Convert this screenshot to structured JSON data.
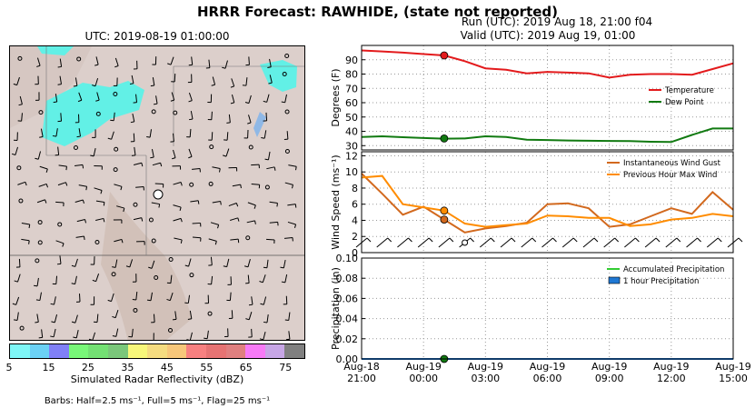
{
  "header": {
    "title": "HRRR Forecast: RAWHIDE, (state not reported)",
    "run": "Run (UTC): 2019 Aug 18, 21:00 f04",
    "valid": "Valid (UTC): 2019 Aug 19, 01:00"
  },
  "map": {
    "title": "UTC: 2019-08-19 01:00:00",
    "colorbar_label": "Simulated Radar Reflectivity (dBZ)",
    "colorbar_ticks": [
      "5",
      "15",
      "25",
      "35",
      "45",
      "55",
      "65",
      "75"
    ],
    "colorbar_colors": [
      "#7ef7f7",
      "#6bd1f5",
      "#8080f7",
      "#78f778",
      "#73e073",
      "#7ac77a",
      "#f7f77a",
      "#f5dc80",
      "#f7c77a",
      "#f78080",
      "#e67373",
      "#e08080",
      "#f77af7",
      "#c7a6e6",
      "#808080"
    ],
    "barbs_note": "Barbs: Half=2.5 ms⁻¹, Full=5 ms⁻¹, Flag=25 ms⁻¹",
    "colors": {
      "terrain": "#dcd0cc",
      "echo": "#62f0e6",
      "water": "#8fb8e6"
    }
  },
  "chart_data": [
    {
      "type": "line",
      "ylabel": "Degrees (F)",
      "ylim": [
        27,
        100
      ],
      "yticks": [
        30,
        40,
        50,
        60,
        70,
        80,
        90
      ],
      "x_hours": [
        0,
        1,
        2,
        3,
        4,
        5,
        6,
        7,
        8,
        9,
        10,
        11,
        12,
        13,
        14,
        15,
        16,
        17,
        18
      ],
      "series": [
        {
          "name": "Temperature",
          "color": "#e31a1c",
          "values": [
            96.5,
            95.8,
            95,
            94,
            93,
            89,
            84,
            83,
            80.5,
            81.5,
            81,
            80.5,
            77.5,
            79.5,
            80,
            80,
            79.5,
            83.5,
            87.5
          ]
        },
        {
          "name": "Dew Point",
          "color": "#117a11",
          "values": [
            36,
            36.5,
            35.9,
            35.3,
            34.9,
            35,
            36.5,
            36,
            34.2,
            33.9,
            33.6,
            33.4,
            33.3,
            33.2,
            32.7,
            32.5,
            37.5,
            42,
            42
          ]
        }
      ],
      "markers": [
        {
          "hour": 4,
          "value": 93,
          "color": "#e31a1c"
        },
        {
          "hour": 4,
          "value": 35,
          "color": "#117a11"
        }
      ],
      "legend": "right"
    },
    {
      "type": "line",
      "ylabel": "Wind Speed (ms⁻¹)",
      "ylim": [
        0,
        12.5
      ],
      "yticks": [
        0,
        2,
        4,
        6,
        8,
        10,
        12
      ],
      "x_hours": [
        0,
        1,
        2,
        3,
        4,
        5,
        6,
        7,
        8,
        9,
        10,
        11,
        12,
        13,
        14,
        15,
        16,
        17,
        18
      ],
      "series": [
        {
          "name": "Instantaneous Wind Gust",
          "color": "#d2691e",
          "values": [
            9.8,
            7.3,
            4.7,
            5.7,
            4.1,
            2.5,
            3.0,
            3.3,
            3.7,
            6.0,
            6.1,
            5.5,
            3.2,
            3.5,
            4.5,
            5.5,
            4.8,
            7.5,
            5.3
          ]
        },
        {
          "name": "Previous Hour Max Wind",
          "color": "#ff8c00",
          "values": [
            9.3,
            9.5,
            6.0,
            5.6,
            5.2,
            3.6,
            3.2,
            3.4,
            3.6,
            4.6,
            4.5,
            4.3,
            4.3,
            3.3,
            3.5,
            4.1,
            4.3,
            4.8,
            4.5
          ]
        }
      ],
      "markers": [
        {
          "hour": 4,
          "value": 5.2,
          "color": "#ff8c00"
        },
        {
          "hour": 4,
          "value": 4.1,
          "color": "#d2691e"
        }
      ],
      "legend": "top-right"
    },
    {
      "type": "line",
      "ylabel": "Precipitation (in)",
      "ylim": [
        0,
        0.1
      ],
      "yticks": [
        "0.00",
        "0.02",
        "0.04",
        "0.06",
        "0.08",
        "0.10"
      ],
      "x_hours": [
        0,
        1,
        2,
        3,
        4,
        5,
        6,
        7,
        8,
        9,
        10,
        11,
        12,
        13,
        14,
        15,
        16,
        17,
        18
      ],
      "series": [
        {
          "name": "Accumulated Precipitation",
          "color": "#33cc33",
          "values": [
            0,
            0,
            0,
            0,
            0,
            0,
            0,
            0,
            0,
            0,
            0,
            0,
            0,
            0,
            0,
            0,
            0,
            0,
            0
          ]
        },
        {
          "name": "1 hour Precipitation",
          "color": "#1f78d4",
          "values": [
            0,
            0,
            0,
            0,
            0,
            0,
            0,
            0,
            0,
            0,
            0,
            0,
            0,
            0,
            0,
            0,
            0,
            0,
            0
          ]
        }
      ],
      "markers": [
        {
          "hour": 4,
          "value": 0,
          "color": "#117a11"
        }
      ],
      "legend": "top-right"
    }
  ],
  "x_axis": {
    "ticks": [
      {
        "hour": 0,
        "l1": "Aug-18",
        "l2": "21:00"
      },
      {
        "hour": 3,
        "l1": "Aug-19",
        "l2": "00:00"
      },
      {
        "hour": 6,
        "l1": "Aug-19",
        "l2": "03:00"
      },
      {
        "hour": 9,
        "l1": "Aug-19",
        "l2": "06:00"
      },
      {
        "hour": 12,
        "l1": "Aug-19",
        "l2": "09:00"
      },
      {
        "hour": 15,
        "l1": "Aug-19",
        "l2": "12:00"
      },
      {
        "hour": 18,
        "l1": "Aug-19",
        "l2": "15:00"
      }
    ]
  }
}
